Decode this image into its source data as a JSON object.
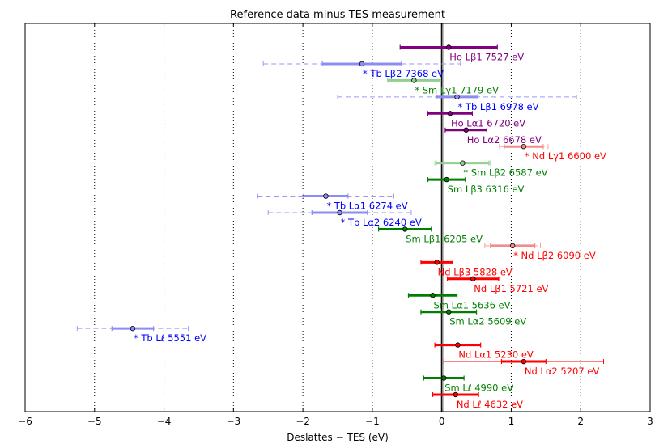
{
  "chart_data": {
    "type": "errorbar",
    "title": "Reference data minus TES measurement",
    "xlabel": "Deslattes − TES (eV)",
    "xlim": [
      -6,
      3
    ],
    "xticks": [
      -6,
      -5,
      -4,
      -3,
      -2,
      -1,
      0,
      1,
      2,
      3
    ],
    "xtick_labels": [
      "−6",
      "−5",
      "−4",
      "−3",
      "−2",
      "−1",
      "0",
      "1",
      "2",
      "3"
    ],
    "gridlines_x": [
      -5,
      -4,
      -3,
      -2,
      -1,
      1,
      2
    ],
    "zero_line": 0,
    "series_colors": {
      "Ho": "#800080",
      "Tb": "#0000ff",
      "Sm": "#008000",
      "Nd": "#ff0000"
    },
    "points": [
      {
        "label": "Ho Lβ1 7527 eV",
        "element": "Ho",
        "value": 0.1,
        "err_solid": 0.7,
        "err_dashed": null,
        "faint": false
      },
      {
        "label": "* Tb Lβ2 7368 eV",
        "element": "Tb",
        "value": -1.15,
        "err_solid": 0.57,
        "err_dashed": 1.42,
        "faint": true
      },
      {
        "label": "* Sm Lγ1 7179 eV",
        "element": "Sm",
        "value": -0.4,
        "err_solid": 0.38,
        "err_dashed": null,
        "faint": true
      },
      {
        "label": "* Tb Lβ1 6978 eV",
        "element": "Tb",
        "value": 0.22,
        "err_solid": 0.3,
        "err_dashed": 1.72,
        "faint": true
      },
      {
        "label": "Ho Lα1 6720 eV",
        "element": "Ho",
        "value": 0.12,
        "err_solid": 0.32,
        "err_dashed": null,
        "faint": false
      },
      {
        "label": "Ho Lα2 6678 eV",
        "element": "Ho",
        "value": 0.35,
        "err_solid": 0.3,
        "err_dashed": null,
        "faint": false
      },
      {
        "label": "* Nd Lγ1 6600 eV",
        "element": "Nd",
        "value": 1.18,
        "err_solid": 0.28,
        "err_dashed": 0.35,
        "faint": true
      },
      {
        "label": "* Sm Lβ2 6587 eV",
        "element": "Sm",
        "value": 0.3,
        "err_solid": 0.38,
        "err_dashed": 0.4,
        "faint": true
      },
      {
        "label": "Sm Lβ3 6316 eV",
        "element": "Sm",
        "value": 0.07,
        "err_solid": 0.27,
        "err_dashed": null,
        "faint": false
      },
      {
        "label": "* Tb Lα1 6274 eV",
        "element": "Tb",
        "value": -1.67,
        "err_solid": 0.32,
        "err_dashed": 0.98,
        "faint": true
      },
      {
        "label": "* Tb Lα2 6240 eV",
        "element": "Tb",
        "value": -1.47,
        "err_solid": 0.4,
        "err_dashed": 1.03,
        "faint": true
      },
      {
        "label": "Sm Lβ1 6205 eV",
        "element": "Sm",
        "value": -0.53,
        "err_solid": 0.38,
        "err_dashed": null,
        "faint": false
      },
      {
        "label": "* Nd Lβ2 6090 eV",
        "element": "Nd",
        "value": 1.02,
        "err_solid": 0.32,
        "err_dashed": 0.4,
        "faint": true
      },
      {
        "label": "Nd Lβ3 5828 eV",
        "element": "Nd",
        "value": -0.07,
        "err_solid": 0.23,
        "err_dashed": null,
        "faint": false
      },
      {
        "label": "Nd Lβ1 5721 eV",
        "element": "Nd",
        "value": 0.45,
        "err_solid": 0.37,
        "err_dashed": null,
        "faint": false
      },
      {
        "label": "Sm Lα1 5636 eV",
        "element": "Sm",
        "value": -0.13,
        "err_solid": 0.35,
        "err_dashed": null,
        "faint": false
      },
      {
        "label": "Sm Lα2 5609 eV",
        "element": "Sm",
        "value": 0.1,
        "err_solid": 0.4,
        "err_dashed": null,
        "faint": false
      },
      {
        "label": "* Tb Lℓ 5551 eV",
        "element": "Tb",
        "value": -4.45,
        "err_solid": 0.3,
        "err_dashed": 0.8,
        "faint": true
      },
      {
        "label": "Nd Lα1 5230 eV",
        "element": "Nd",
        "value": 0.23,
        "err_solid": 0.33,
        "err_dashed": null,
        "faint": false
      },
      {
        "label": "Nd Lα2 5207 eV",
        "element": "Nd",
        "value": 1.18,
        "err_solid": 0.32,
        "err_dashed": 1.15,
        "faint": false
      },
      {
        "label": "Sm Lℓ 4990 eV",
        "element": "Sm",
        "value": 0.03,
        "err_solid": 0.29,
        "err_dashed": null,
        "faint": false
      },
      {
        "label": "Nd Lℓ 4632 eV",
        "element": "Nd",
        "value": 0.2,
        "err_solid": 0.33,
        "err_dashed": null,
        "faint": false
      }
    ]
  }
}
